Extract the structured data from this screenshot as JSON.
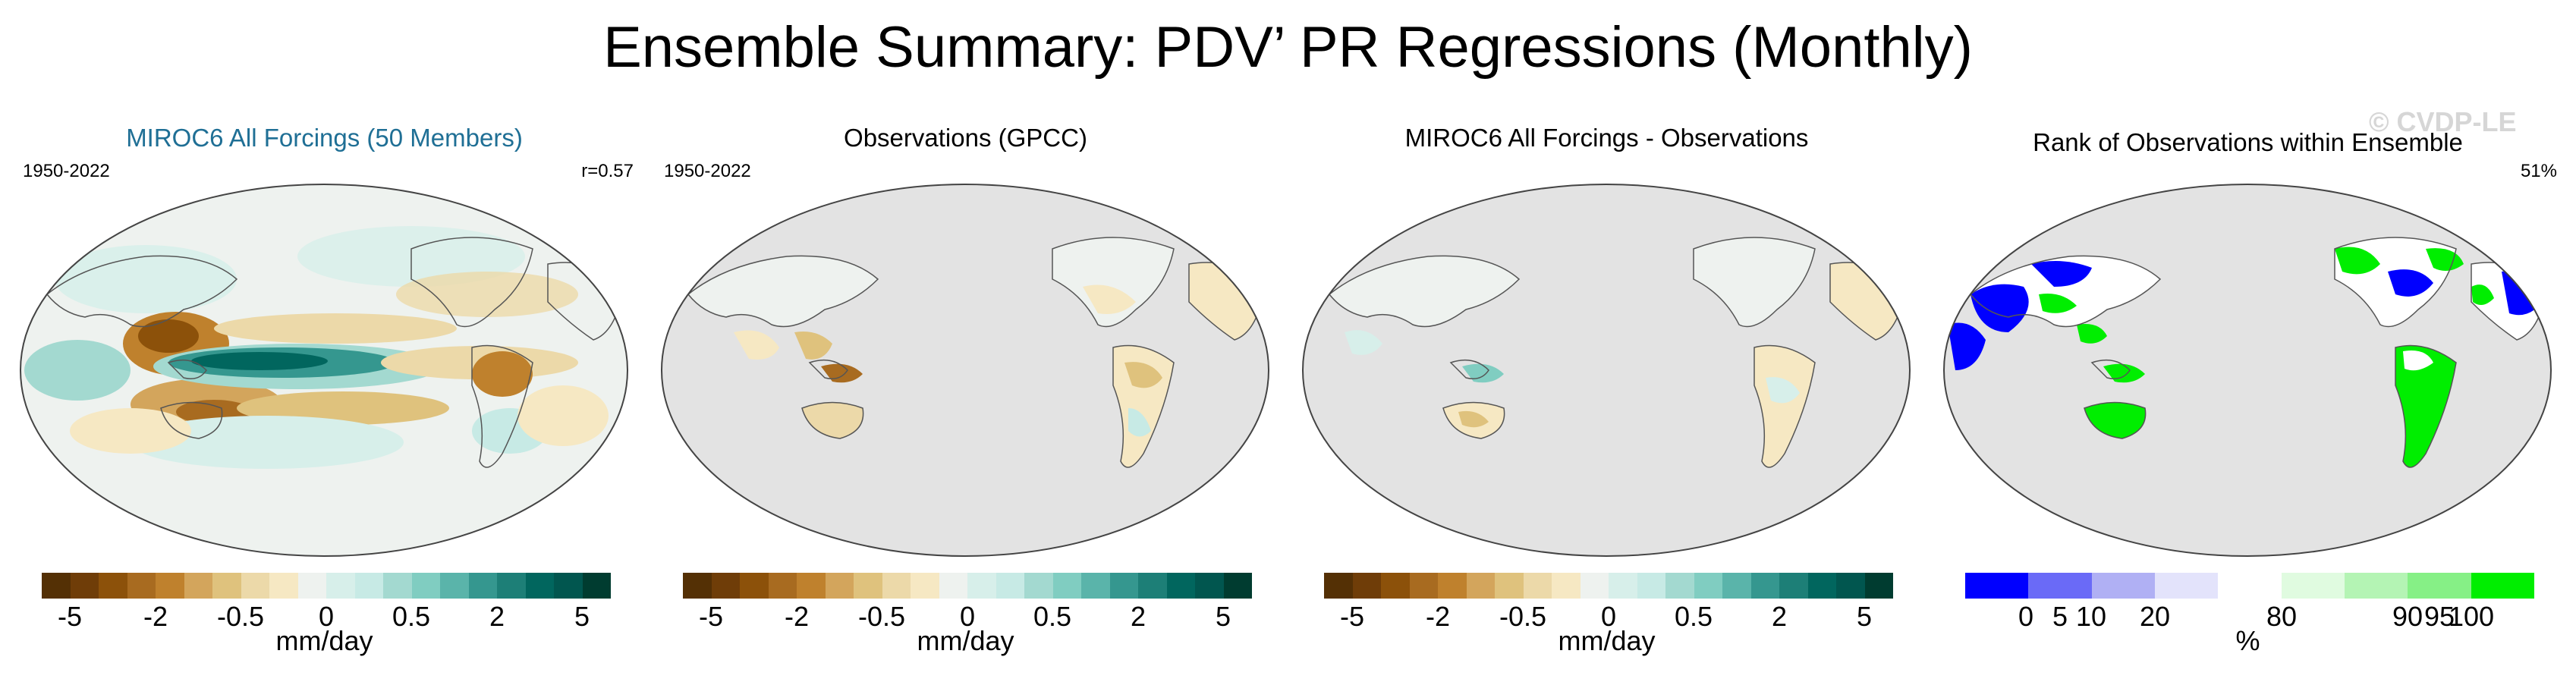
{
  "title": "Ensemble Summary: PDV’ PR Regressions (Monthly)",
  "watermark": "© CVDP-LE",
  "colors": {
    "ocean_gray": "#e3e3e3",
    "coast": "#555555",
    "title_accent": "#1f6f95",
    "brbg": [
      "#543005",
      "#6f3d08",
      "#8c510a",
      "#a86b20",
      "#bf812d",
      "#d3a55c",
      "#dfc27d",
      "#ecd9a9",
      "#f6e8c3",
      "#eef2ef",
      "#d7efea",
      "#c7eae5",
      "#a3d9d0",
      "#80cdc1",
      "#5ab4aa",
      "#35978f",
      "#1d7f77",
      "#01665e",
      "#01564f",
      "#003c30"
    ],
    "rank": [
      "#0000ff",
      "#6a6af7",
      "#b0b0f4",
      "#e3e3fb",
      "#ffffff",
      "#e0fbe0",
      "#b4f4b4",
      "#86f086",
      "#00ee00"
    ]
  },
  "panels": [
    {
      "title": "MIROC6 All Forcings (50 Members)",
      "period": "1950-2022",
      "stat": "r=0.57",
      "map": "model"
    },
    {
      "title": "Observations (GPCC)",
      "period": "1950-2022",
      "stat": "",
      "map": "obs"
    },
    {
      "title": "MIROC6 All Forcings - Observations",
      "period": "",
      "stat": "",
      "map": "diff"
    },
    {
      "title": "Rank of Observations within Ensemble",
      "period": "",
      "stat": "51%",
      "map": "rank"
    }
  ],
  "chart_data": [
    {
      "type": "heatmap",
      "title": "MIROC6 All Forcings (50 Members)",
      "subtitle_left": "1950-2022",
      "subtitle_right": "r=0.57",
      "colorbar": {
        "label": "mm/day",
        "ticks": [
          "-5",
          "-2",
          "-0.5",
          "0",
          "0.5",
          "2",
          "5"
        ],
        "range": [
          -5,
          5
        ]
      }
    },
    {
      "type": "heatmap",
      "title": "Observations (GPCC)",
      "subtitle_left": "1950-2022",
      "colorbar": {
        "label": "mm/day",
        "ticks": [
          "-5",
          "-2",
          "-0.5",
          "0",
          "0.5",
          "2",
          "5"
        ],
        "range": [
          -5,
          5
        ]
      }
    },
    {
      "type": "heatmap",
      "title": "MIROC6 All Forcings - Observations",
      "colorbar": {
        "label": "mm/day",
        "ticks": [
          "-5",
          "-2",
          "-0.5",
          "0",
          "0.5",
          "2",
          "5"
        ],
        "range": [
          -5,
          5
        ]
      }
    },
    {
      "type": "heatmap",
      "title": "Rank of Observations within Ensemble",
      "subtitle_right": "51%",
      "colorbar": {
        "label": "%",
        "ticks": [
          "0",
          "5",
          "10",
          "20",
          "80",
          "90",
          "95",
          "100"
        ],
        "range": [
          0,
          100
        ]
      }
    }
  ]
}
